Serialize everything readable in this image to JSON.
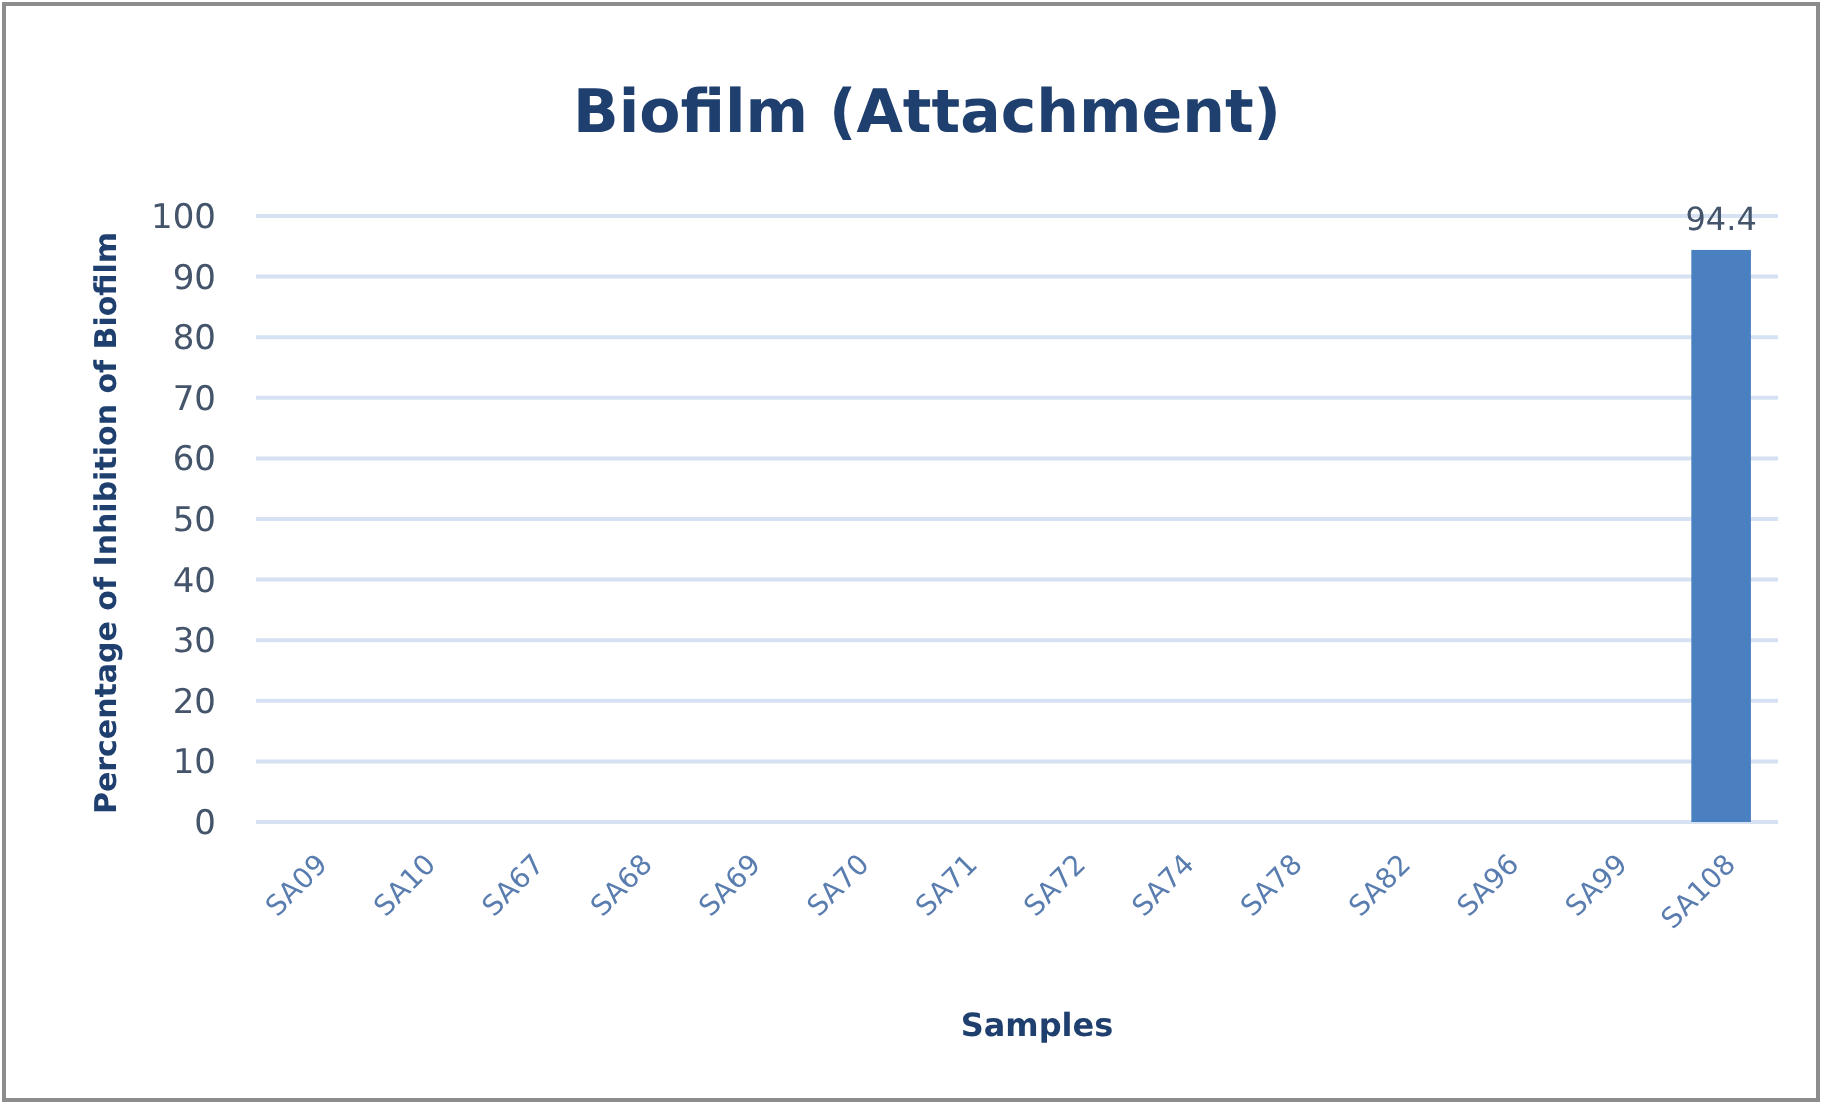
{
  "chart_data": {
    "type": "bar",
    "title": "Biofilm (Attachment)",
    "xlabel": "Samples",
    "ylabel": "Percentage of Inhibition of Biofilm",
    "categories": [
      "SA09",
      "SA10",
      "SA67",
      "SA68",
      "SA69",
      "SA70",
      "SA71",
      "SA72",
      "SA74",
      "SA78",
      "SA82",
      "SA96",
      "SA99",
      "SA108"
    ],
    "values": [
      null,
      null,
      null,
      null,
      null,
      null,
      null,
      null,
      null,
      null,
      null,
      null,
      null,
      94.4
    ],
    "value_labels": [
      null,
      null,
      null,
      null,
      null,
      null,
      null,
      null,
      null,
      null,
      null,
      null,
      null,
      "94.4"
    ],
    "color": "#4a7fc0",
    "ylim": [
      0,
      100
    ],
    "yticks": [
      0,
      10,
      20,
      30,
      40,
      50,
      60,
      70,
      80,
      90,
      100
    ],
    "grid": "y"
  }
}
